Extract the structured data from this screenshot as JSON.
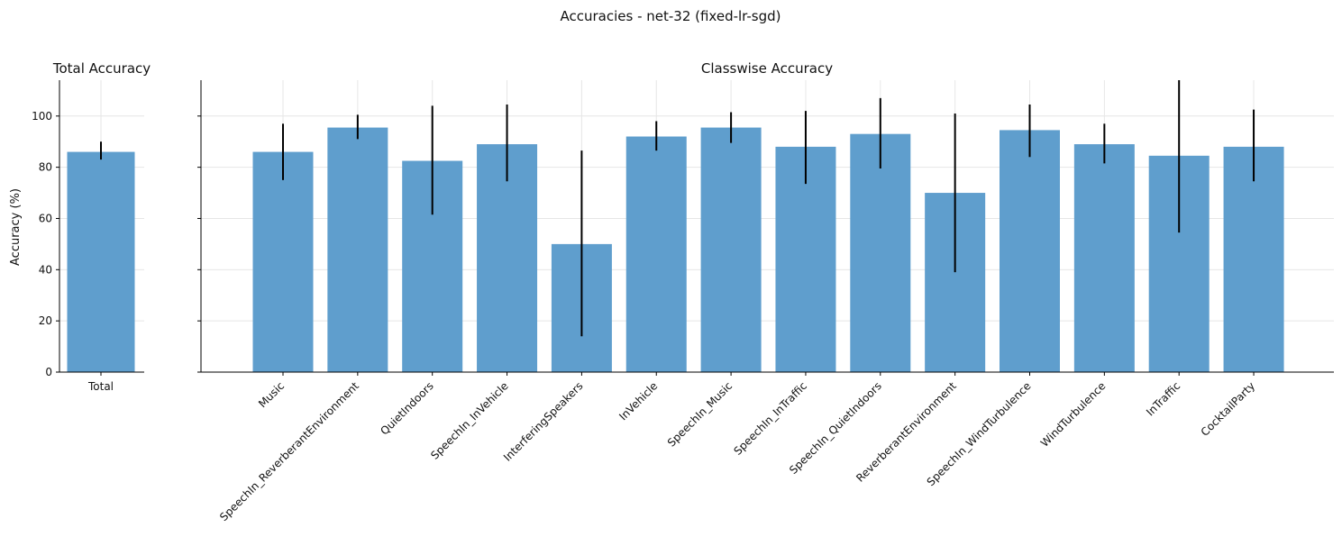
{
  "figure_title": "Accuracies - net-32 (fixed-lr-sgd)",
  "colors": {
    "bar": "#5f9ecd",
    "error": "#000000",
    "grid": "#e6e6e6"
  },
  "chart_data": [
    {
      "type": "bar",
      "title": "Total Accuracy",
      "xlabel": "",
      "ylabel": "Accuracy (%)",
      "ylim": [
        0,
        114
      ],
      "yticks": [
        0,
        20,
        40,
        60,
        80,
        100
      ],
      "grid": true,
      "categories": [
        "Total"
      ],
      "values": [
        86
      ],
      "errors": [
        [
          83,
          90
        ]
      ]
    },
    {
      "type": "bar",
      "title": "Classwise Accuracy",
      "xlabel": "",
      "ylabel": "",
      "ylim": [
        0,
        114
      ],
      "yticks": [
        0,
        20,
        40,
        60,
        80,
        100
      ],
      "grid": true,
      "categories": [
        "Music",
        "SpeechIn_ReverberantEnvironment",
        "QuietIndoors",
        "SpeechIn_InVehicle",
        "InterferingSpeakers",
        "InVehicle",
        "SpeechIn_Music",
        "SpeechIn_InTraffic",
        "SpeechIn_QuietIndoors",
        "ReverberantEnvironment",
        "SpeechIn_WindTurbulence",
        "WindTurbulence",
        "InTraffic",
        "CocktailParty"
      ],
      "values": [
        86,
        95.5,
        82.5,
        89,
        50,
        92,
        95.5,
        88,
        93,
        70,
        94.5,
        89,
        84.5,
        88
      ],
      "errors": [
        [
          75,
          97
        ],
        [
          91,
          100.5
        ],
        [
          61.5,
          104
        ],
        [
          74.5,
          104.5
        ],
        [
          14,
          86.5
        ],
        [
          86.5,
          98
        ],
        [
          89.5,
          101.5
        ],
        [
          73.5,
          102
        ],
        [
          79.5,
          107
        ],
        [
          39,
          101
        ],
        [
          84,
          104.5
        ],
        [
          81.5,
          97
        ],
        [
          54.5,
          114
        ],
        [
          74.5,
          102.5
        ]
      ]
    }
  ]
}
